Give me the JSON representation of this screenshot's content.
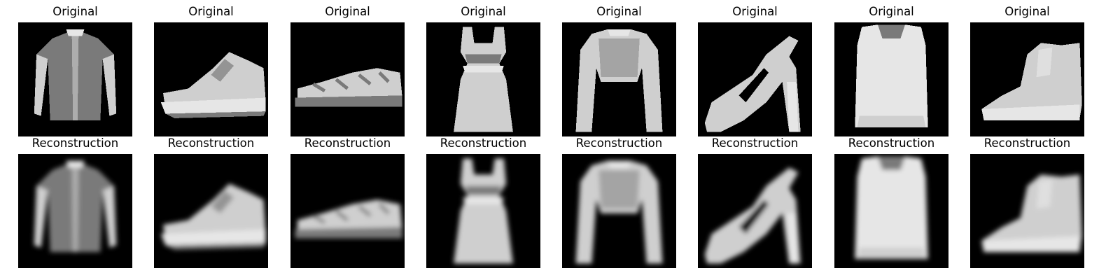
{
  "figure": {
    "rows": [
      {
        "label": "Original",
        "items": [
          {
            "icon": "long-sleeve-shirt-icon",
            "blur": 0
          },
          {
            "icon": "sneaker-icon",
            "blur": 0
          },
          {
            "icon": "sandal-low-shoe-icon",
            "blur": 0
          },
          {
            "icon": "dress-icon",
            "blur": 0
          },
          {
            "icon": "pullover-icon",
            "blur": 0
          },
          {
            "icon": "high-heel-sandal-icon",
            "blur": 0
          },
          {
            "icon": "shirt-top-icon",
            "blur": 0
          },
          {
            "icon": "ankle-boot-icon",
            "blur": 0
          }
        ]
      },
      {
        "label": "Reconstruction",
        "items": [
          {
            "icon": "long-sleeve-shirt-icon",
            "blur": 1
          },
          {
            "icon": "sneaker-icon",
            "blur": 1
          },
          {
            "icon": "sandal-low-shoe-icon",
            "blur": 1
          },
          {
            "icon": "dress-icon",
            "blur": 1
          },
          {
            "icon": "pullover-icon",
            "blur": 1
          },
          {
            "icon": "high-heel-sandal-icon",
            "blur": 1
          },
          {
            "icon": "shirt-top-icon",
            "blur": 1
          },
          {
            "icon": "ankle-boot-icon",
            "blur": 1
          }
        ]
      }
    ],
    "colors": {
      "background": "#000000",
      "garment": "#cfcfcf",
      "garment_dark": "#7a7a7a",
      "garment_light": "#e6e6e6"
    }
  }
}
